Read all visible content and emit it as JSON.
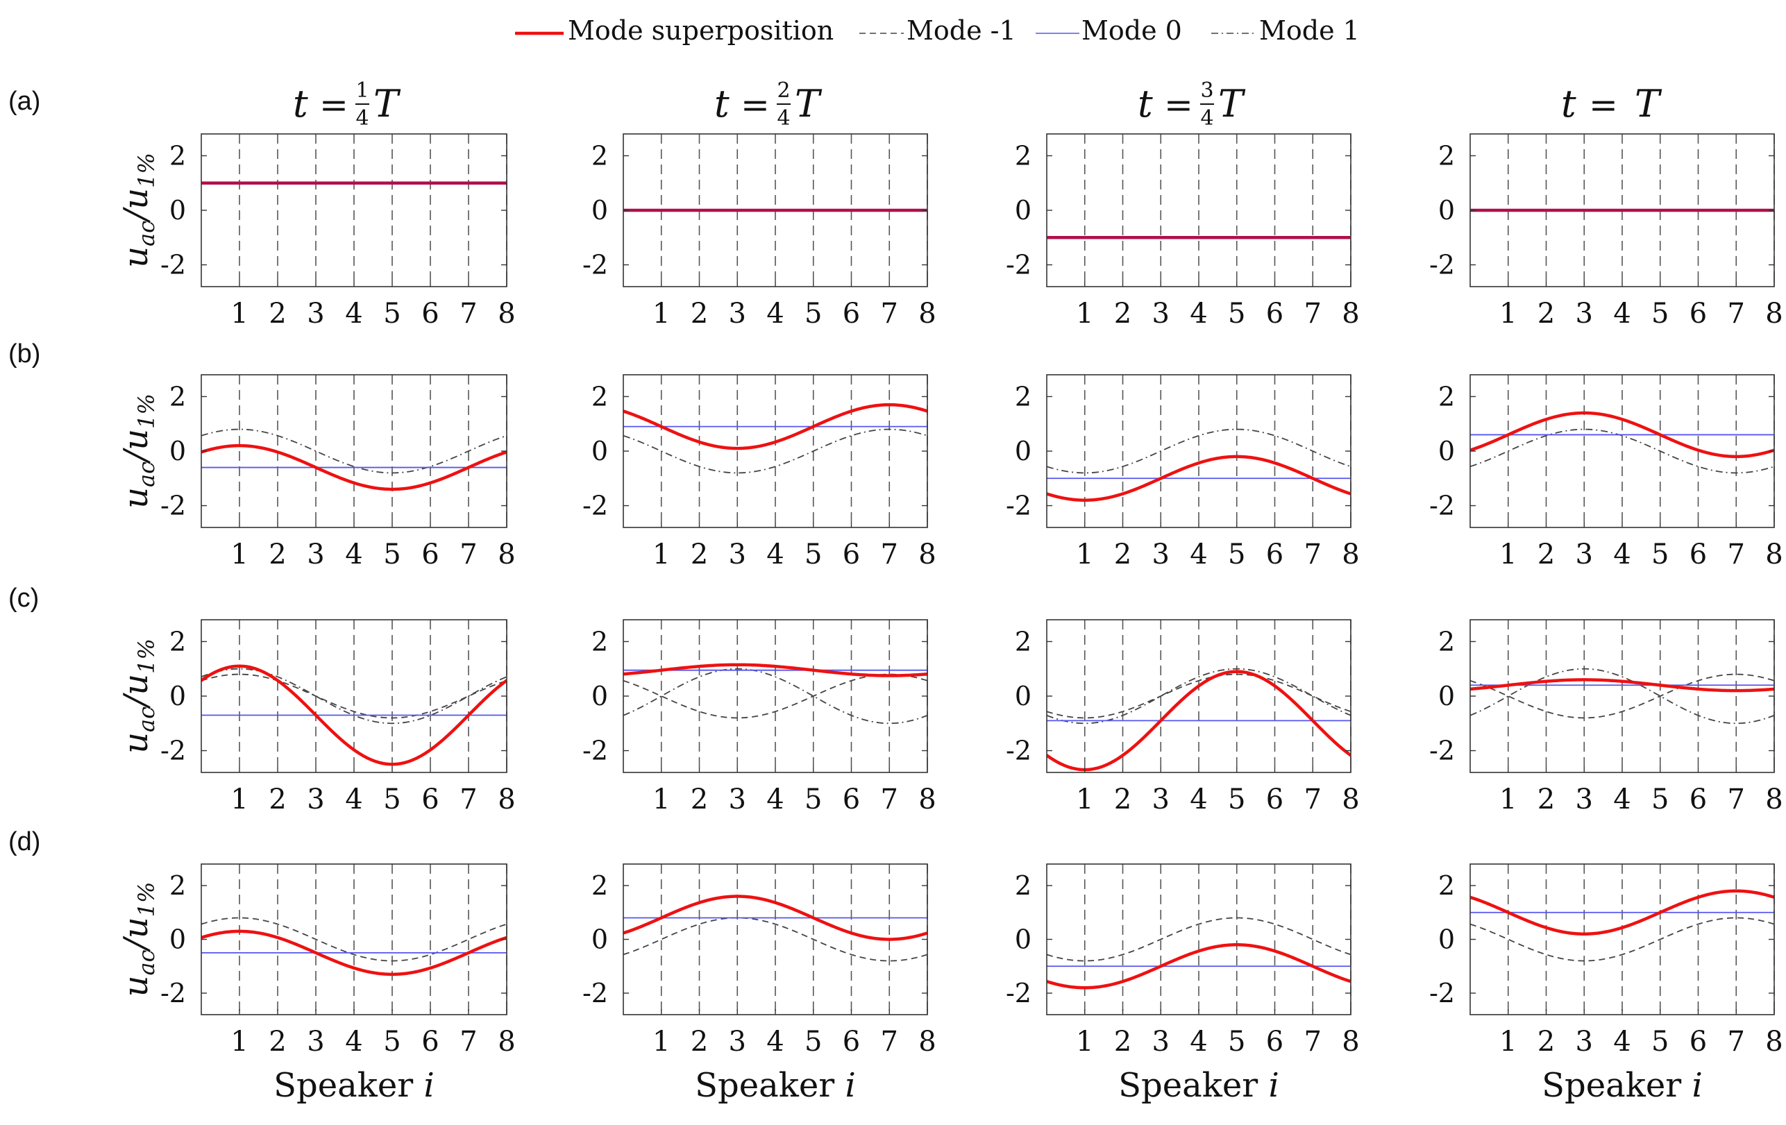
{
  "legend": {
    "entries": [
      {
        "label": "Mode superposition",
        "key": "sum"
      },
      {
        "label": "Mode -1",
        "key": "mm1"
      },
      {
        "label": "Mode 0",
        "key": "m0"
      },
      {
        "label": "Mode 1",
        "key": "mp1"
      }
    ]
  },
  "columns": {
    "titles": [
      {
        "t": "t",
        "eq": "=",
        "num": "1",
        "den": "4",
        "T": "T"
      },
      {
        "t": "t",
        "eq": "=",
        "num": "2",
        "den": "4",
        "T": "T"
      },
      {
        "t": "t",
        "eq": "=",
        "num": "3",
        "den": "4",
        "T": "T"
      },
      {
        "t": "t",
        "eq": "=",
        "num": "",
        "den": "",
        "T": "T"
      }
    ]
  },
  "rows": {
    "labels": [
      "(a)",
      "(b)",
      "(c)",
      "(d)"
    ]
  },
  "axes": {
    "ylabel_main": "u",
    "ylabel_sub": "ac",
    "ylabel_sep": "/",
    "ylabel_main2": "u",
    "ylabel_sub2": "1%",
    "xlabel": "Speaker",
    "xlabel_var": "i",
    "xticks": [
      "1",
      "2",
      "3",
      "4",
      "5",
      "6",
      "7",
      "8"
    ],
    "yticks": [
      "2",
      "0",
      "-2"
    ]
  },
  "colors": {
    "sum": "#ee1111",
    "mode0": "#5555ee",
    "modes": "#444444",
    "grid": "#555555",
    "axis": "#333333"
  },
  "chart_data": {
    "type": "line",
    "title": "",
    "xlabel": "Speaker i",
    "ylabel": "u_ac/u_1%",
    "xlim": [
      0,
      8
    ],
    "ylim": [
      -2.8,
      2.8
    ],
    "x_ticks": [
      1,
      2,
      3,
      4,
      5,
      6,
      7,
      8
    ],
    "y_ticks": [
      2,
      0,
      -2
    ],
    "grid": "vertical dashed lines at each speaker",
    "legend": "top-center",
    "series_names": [
      "Mode superposition",
      "Mode -1",
      "Mode 0",
      "Mode 1"
    ],
    "wave_period_in_speakers": 8,
    "panels": [
      {
        "row": "(a)",
        "col": "t = 1/4 T",
        "mode0": 1.0,
        "mode_minus1": null,
        "mode_plus1": null,
        "superposition_max": 1.0,
        "superposition_min": 1.0
      },
      {
        "row": "(a)",
        "col": "t = 2/4 T",
        "mode0": 0.0,
        "mode_minus1": null,
        "mode_plus1": null,
        "superposition_max": 0.0,
        "superposition_min": 0.0
      },
      {
        "row": "(a)",
        "col": "t = 3/4 T",
        "mode0": -1.0,
        "mode_minus1": null,
        "mode_plus1": null,
        "superposition_max": -1.0,
        "superposition_min": -1.0
      },
      {
        "row": "(a)",
        "col": "t = T",
        "mode0": 0.0,
        "mode_minus1": null,
        "mode_plus1": null,
        "superposition_max": 0.0,
        "superposition_min": 0.0
      },
      {
        "row": "(b)",
        "col": "t = 1/4 T",
        "mode0": -0.6,
        "mode_minus1": null,
        "mode_plus1": {
          "amp": 0.8,
          "peak_at": 1
        },
        "superposition_max": 0.2,
        "superposition_min": -1.4
      },
      {
        "row": "(b)",
        "col": "t = 2/4 T",
        "mode0": 0.9,
        "mode_minus1": null,
        "mode_plus1": {
          "amp": 0.8,
          "peak_at": 7
        },
        "superposition_max": 1.7,
        "superposition_min": 0.1
      },
      {
        "row": "(b)",
        "col": "t = 3/4 T",
        "mode0": -1.0,
        "mode_minus1": null,
        "mode_plus1": {
          "amp": 0.8,
          "peak_at": 5
        },
        "superposition_max": -0.2,
        "superposition_min": -1.8
      },
      {
        "row": "(b)",
        "col": "t = T",
        "mode0": 0.6,
        "mode_minus1": null,
        "mode_plus1": {
          "amp": 0.8,
          "peak_at": 3
        },
        "superposition_max": 1.4,
        "superposition_min": -0.2
      },
      {
        "row": "(c)",
        "col": "t = 1/4 T",
        "mode0": -0.7,
        "mode_minus1": {
          "amp": 0.8,
          "peak_at": 1
        },
        "mode_plus1": {
          "amp": 1.0,
          "peak_at": 1
        },
        "superposition_max": 1.1,
        "superposition_min": -2.5
      },
      {
        "row": "(c)",
        "col": "t = 2/4 T",
        "mode0": 0.95,
        "mode_minus1": {
          "amp": 0.8,
          "peak_at": 7
        },
        "mode_plus1": {
          "amp": 1.0,
          "peak_at": 3
        },
        "superposition_max": 1.2,
        "superposition_min": 0.7
      },
      {
        "row": "(c)",
        "col": "t = 3/4 T",
        "mode0": -0.9,
        "mode_minus1": {
          "amp": 0.8,
          "peak_at": 5
        },
        "mode_plus1": {
          "amp": 1.0,
          "peak_at": 5
        },
        "superposition_max": 0.9,
        "superposition_min": -2.7
      },
      {
        "row": "(c)",
        "col": "t = T",
        "mode0": 0.4,
        "mode_minus1": {
          "amp": 0.8,
          "peak_at": 7
        },
        "mode_plus1": {
          "amp": 1.0,
          "peak_at": 3
        },
        "superposition_max": 0.6,
        "superposition_min": 0.2
      },
      {
        "row": "(d)",
        "col": "t = 1/4 T",
        "mode0": -0.5,
        "mode_minus1": {
          "amp": 0.8,
          "peak_at": 1
        },
        "mode_plus1": null,
        "superposition_max": 0.3,
        "superposition_min": -1.3
      },
      {
        "row": "(d)",
        "col": "t = 2/4 T",
        "mode0": 0.8,
        "mode_minus1": {
          "amp": 0.8,
          "peak_at": 3
        },
        "mode_plus1": null,
        "superposition_max": 1.6,
        "superposition_min": 0.0
      },
      {
        "row": "(d)",
        "col": "t = 3/4 T",
        "mode0": -1.0,
        "mode_minus1": {
          "amp": 0.8,
          "peak_at": 5
        },
        "mode_plus1": null,
        "superposition_max": -0.2,
        "superposition_min": -1.8
      },
      {
        "row": "(d)",
        "col": "t = T",
        "mode0": 1.0,
        "mode_minus1": {
          "amp": 0.8,
          "peak_at": 7
        },
        "mode_plus1": null,
        "superposition_max": 1.8,
        "superposition_min": 0.2
      }
    ]
  }
}
